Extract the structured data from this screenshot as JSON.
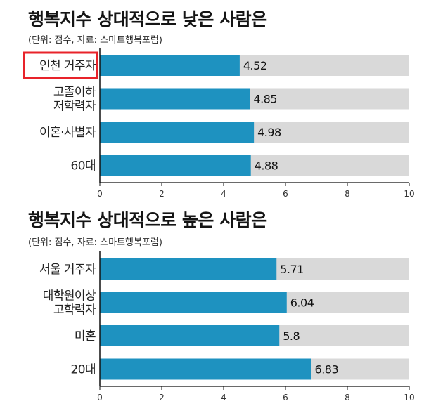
{
  "colors": {
    "bar": "#1e92c0",
    "track": "#d9d9d9",
    "axis": "#111111",
    "highlight": "#e8232a"
  },
  "chart_data": [
    {
      "type": "bar",
      "orientation": "horizontal",
      "title": "행복지수 상대적으로 낮은 사람은",
      "subtitle": "(단위: 점수, 자료: 스마트행복포럼)",
      "categories": [
        [
          "인천 거주자"
        ],
        [
          "고졸이하",
          "저학력자"
        ],
        [
          "이혼·사별자"
        ],
        [
          "60대"
        ]
      ],
      "values": [
        4.52,
        4.85,
        4.98,
        4.88
      ],
      "value_labels": [
        "4.52",
        "4.85",
        "4.98",
        "4.88"
      ],
      "highlight_index": 0,
      "xlim": [
        0,
        10
      ],
      "xticks": [
        "0",
        "2",
        "4",
        "6",
        "8",
        "10"
      ]
    },
    {
      "type": "bar",
      "orientation": "horizontal",
      "title": "행복지수 상대적으로 높은 사람은",
      "subtitle": "(단위: 점수, 자료: 스마트행복포럼)",
      "categories": [
        [
          "서울 거주자"
        ],
        [
          "대학원이상",
          "고학력자"
        ],
        [
          "미혼"
        ],
        [
          "20대"
        ]
      ],
      "values": [
        5.71,
        6.04,
        5.8,
        6.83
      ],
      "value_labels": [
        "5.71",
        "6.04",
        "5.8",
        "6.83"
      ],
      "highlight_index": null,
      "xlim": [
        0,
        10
      ],
      "xticks": [
        "0",
        "2",
        "4",
        "6",
        "8",
        "10"
      ]
    }
  ]
}
